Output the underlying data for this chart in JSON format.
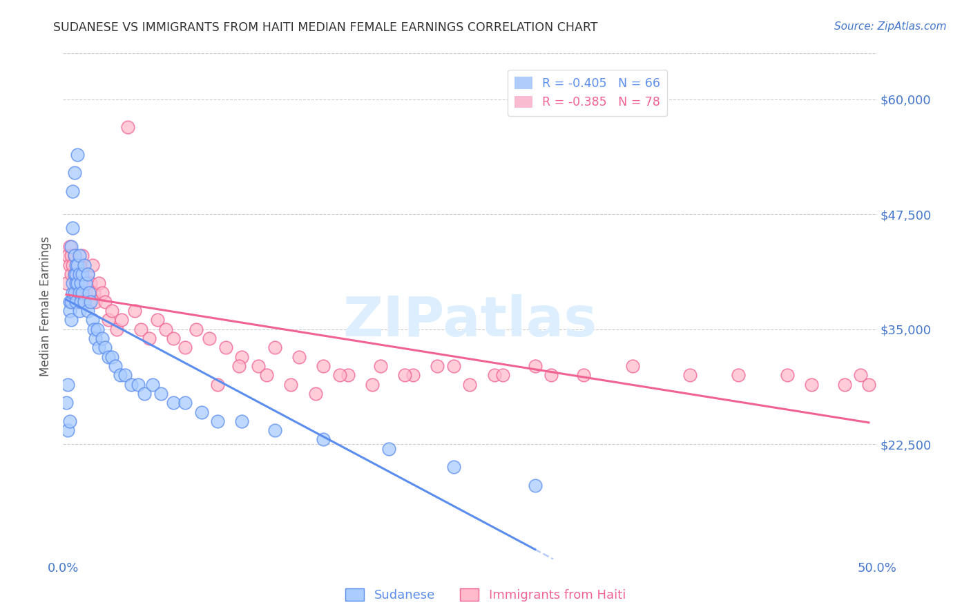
{
  "title": "SUDANESE VS IMMIGRANTS FROM HAITI MEDIAN FEMALE EARNINGS CORRELATION CHART",
  "source": "Source: ZipAtlas.com",
  "ylabel": "Median Female Earnings",
  "xlim": [
    0.0,
    0.5
  ],
  "ylim": [
    10000,
    65000
  ],
  "yticks": [
    22500,
    35000,
    47500,
    60000
  ],
  "ytick_labels": [
    "$22,500",
    "$35,000",
    "$47,500",
    "$60,000"
  ],
  "xticks": [
    0.0,
    0.05,
    0.1,
    0.15,
    0.2,
    0.25,
    0.3,
    0.35,
    0.4,
    0.45,
    0.5
  ],
  "xtick_labels": [
    "0.0%",
    "",
    "",
    "",
    "",
    "",
    "",
    "",
    "",
    "",
    "50.0%"
  ],
  "legend_entries": [
    {
      "label": "R = -0.405   N = 66",
      "color": "#7baaf7"
    },
    {
      "label": "R = -0.385   N = 78",
      "color": "#f48fb1"
    }
  ],
  "watermark_text": "ZIPatlas",
  "watermark_color": "#ddeeff",
  "sudanese_color": "#5b8def",
  "haiti_color": "#f06292",
  "sudanese_fill": "#aaccff",
  "haiti_fill": "#ffbbcc",
  "grid_color": "#cccccc",
  "title_color": "#333333",
  "axis_color": "#4477cc",
  "background_color": "#ffffff",
  "sudanese_x": [
    0.002,
    0.003,
    0.003,
    0.004,
    0.004,
    0.004,
    0.005,
    0.005,
    0.005,
    0.006,
    0.006,
    0.006,
    0.006,
    0.007,
    0.007,
    0.007,
    0.007,
    0.008,
    0.008,
    0.008,
    0.008,
    0.009,
    0.009,
    0.009,
    0.01,
    0.01,
    0.01,
    0.01,
    0.011,
    0.011,
    0.012,
    0.012,
    0.013,
    0.013,
    0.014,
    0.015,
    0.015,
    0.016,
    0.017,
    0.018,
    0.019,
    0.02,
    0.021,
    0.022,
    0.024,
    0.026,
    0.028,
    0.03,
    0.032,
    0.035,
    0.038,
    0.042,
    0.046,
    0.05,
    0.055,
    0.06,
    0.068,
    0.075,
    0.085,
    0.095,
    0.11,
    0.13,
    0.16,
    0.2,
    0.24,
    0.29
  ],
  "sudanese_y": [
    27000,
    24000,
    29000,
    38000,
    37000,
    25000,
    38000,
    36000,
    44000,
    50000,
    39000,
    40000,
    46000,
    41000,
    39000,
    43000,
    52000,
    42000,
    40000,
    41000,
    38000,
    42000,
    40000,
    54000,
    39000,
    41000,
    43000,
    37000,
    40000,
    38000,
    41000,
    39000,
    42000,
    38000,
    40000,
    41000,
    37000,
    39000,
    38000,
    36000,
    35000,
    34000,
    35000,
    33000,
    34000,
    33000,
    32000,
    32000,
    31000,
    30000,
    30000,
    29000,
    29000,
    28000,
    29000,
    28000,
    27000,
    27000,
    26000,
    25000,
    25000,
    24000,
    23000,
    22000,
    20000,
    18000
  ],
  "haiti_x": [
    0.002,
    0.003,
    0.004,
    0.004,
    0.005,
    0.005,
    0.006,
    0.006,
    0.007,
    0.007,
    0.008,
    0.008,
    0.009,
    0.009,
    0.01,
    0.01,
    0.011,
    0.011,
    0.012,
    0.012,
    0.013,
    0.014,
    0.015,
    0.016,
    0.017,
    0.018,
    0.019,
    0.02,
    0.022,
    0.024,
    0.026,
    0.028,
    0.03,
    0.033,
    0.036,
    0.04,
    0.044,
    0.048,
    0.053,
    0.058,
    0.063,
    0.068,
    0.075,
    0.082,
    0.09,
    0.1,
    0.11,
    0.12,
    0.13,
    0.145,
    0.16,
    0.175,
    0.195,
    0.215,
    0.24,
    0.265,
    0.29,
    0.32,
    0.35,
    0.385,
    0.415,
    0.445,
    0.46,
    0.48,
    0.49,
    0.495,
    0.3,
    0.27,
    0.25,
    0.23,
    0.21,
    0.19,
    0.17,
    0.155,
    0.14,
    0.125,
    0.108,
    0.095
  ],
  "haiti_y": [
    40000,
    43000,
    44000,
    42000,
    41000,
    43000,
    42000,
    38000,
    43000,
    41000,
    40000,
    39000,
    41000,
    38000,
    42000,
    40000,
    39000,
    41000,
    38000,
    43000,
    40000,
    39000,
    41000,
    38000,
    40000,
    42000,
    39000,
    38000,
    40000,
    39000,
    38000,
    36000,
    37000,
    35000,
    36000,
    57000,
    37000,
    35000,
    34000,
    36000,
    35000,
    34000,
    33000,
    35000,
    34000,
    33000,
    32000,
    31000,
    33000,
    32000,
    31000,
    30000,
    31000,
    30000,
    31000,
    30000,
    31000,
    30000,
    31000,
    30000,
    30000,
    30000,
    29000,
    29000,
    30000,
    29000,
    30000,
    30000,
    29000,
    31000,
    30000,
    29000,
    30000,
    28000,
    29000,
    30000,
    31000,
    29000
  ]
}
